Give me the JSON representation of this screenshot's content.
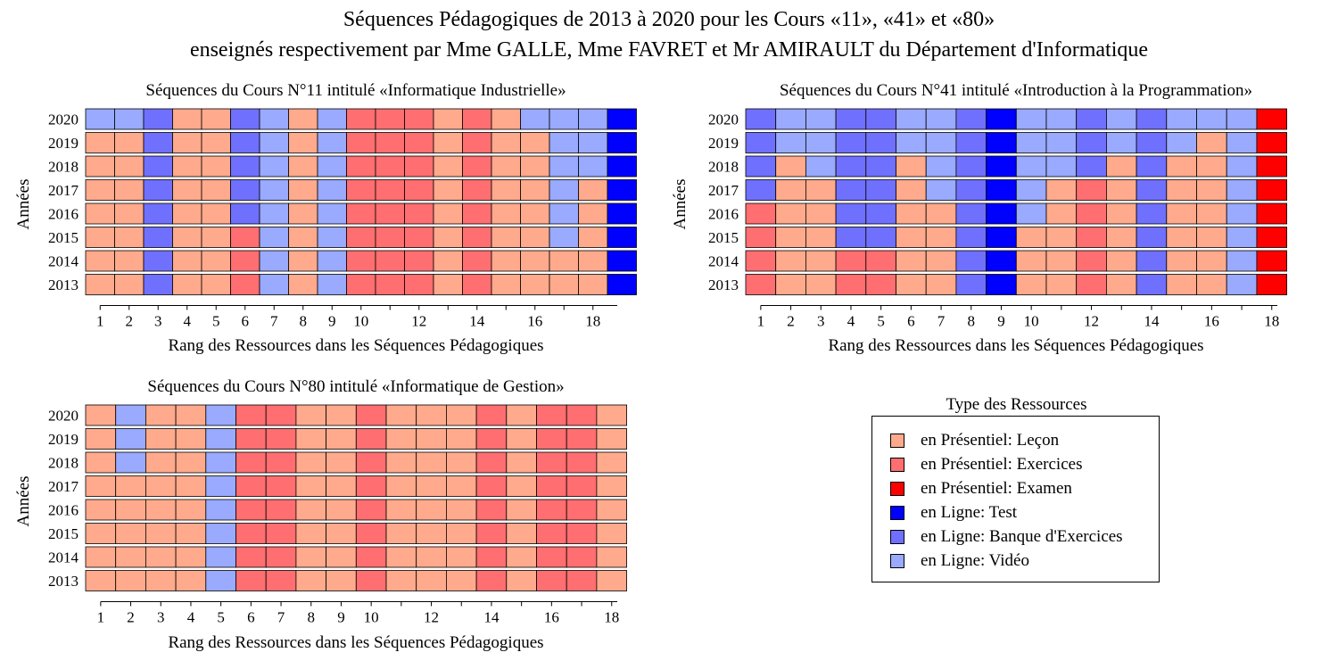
{
  "title": {
    "line1": "Séquences Pédagogiques de 2013 à 2020 pour les Cours «11», «41» et «80»",
    "line2": "enseignés respectivement par Mme GALLE, Mme FAVRET et Mr AMIRAULT du Département d'Informatique"
  },
  "legend": {
    "title": "Type des Ressources",
    "items": [
      {
        "code": "L",
        "label": "en Présentiel: Leçon",
        "color": "#FFAA8C"
      },
      {
        "code": "E",
        "label": "en Présentiel: Exercices",
        "color": "#FF6E70"
      },
      {
        "code": "X",
        "label": "en Présentiel: Examen",
        "color": "#FF0000"
      },
      {
        "code": "T",
        "label": "en Ligne: Test",
        "color": "#0000FF"
      },
      {
        "code": "B",
        "label": "en Ligne: Banque d'Exercices",
        "color": "#7070FF"
      },
      {
        "code": "V",
        "label": "en Ligne: Vidéo",
        "color": "#99AAFF"
      }
    ]
  },
  "chart_data": [
    {
      "type": "heatmap",
      "title": "Séquences du Cours N°11 intitulé «Informatique Industrielle»",
      "xlabel": "Rang des Ressources dans les Séquences Pédagogiques",
      "ylabel": "Années",
      "x_ticks": [
        "1",
        "2",
        "3",
        "4",
        "5",
        "6",
        "7",
        "8",
        "9",
        "10",
        "12",
        "14",
        "16",
        "18"
      ],
      "years": [
        "2020",
        "2019",
        "2018",
        "2017",
        "2016",
        "2015",
        "2014",
        "2013"
      ],
      "rows": [
        "VVBLLBVLVEEELELVVVT",
        "LLBLLBVLVEEELELLVVT",
        "LLBLLBVLVEEELELLVVT",
        "LLBLLBVLVEEELELLVLT",
        "LLBLLBVLVEEELELLVLT",
        "LLBLLEVLVEEELELLVLT",
        "LLBLLEVLVEEELELLLLT",
        "LLBLLEVLVEEELELLLLT"
      ]
    },
    {
      "type": "heatmap",
      "title": "Séquences du Cours N°41 intitulé «Introduction à la Programmation»",
      "xlabel": "Rang des Ressources dans les Séquences Pédagogiques",
      "ylabel": "Années",
      "x_ticks": [
        "1",
        "2",
        "3",
        "4",
        "5",
        "6",
        "7",
        "8",
        "9",
        "10",
        "12",
        "14",
        "16",
        "18"
      ],
      "years": [
        "2020",
        "2019",
        "2018",
        "2017",
        "2016",
        "2015",
        "2014",
        "2013"
      ],
      "rows": [
        "BVVBBVVBTVVBVBVVVX",
        "BVVBBVVBTVVBVBVLVX",
        "BLVBBLVBTVVBLBLLVX",
        "BLLBBLVBTVLELBLLVX",
        "ELLBBLLBTVLELBLLVX",
        "ELLBBLLBTLLELBLLVX",
        "ELLEELLBTLLELBLLVX",
        "ELLEELLBTLLELBLLVX"
      ]
    },
    {
      "type": "heatmap",
      "title": "Séquences du Cours N°80 intitulé «Informatique de Gestion»",
      "xlabel": "Rang des Ressources dans les Séquences Pédagogiques",
      "ylabel": "Années",
      "x_ticks": [
        "1",
        "2",
        "3",
        "4",
        "5",
        "6",
        "7",
        "8",
        "9",
        "10",
        "12",
        "14",
        "16",
        "18"
      ],
      "years": [
        "2020",
        "2019",
        "2018",
        "2017",
        "2016",
        "2015",
        "2014",
        "2013"
      ],
      "rows": [
        "LVLLVEELLELLLELEEL",
        "LVLLVEELLELLLELEEL",
        "LVLLVEELLELLLELEEL",
        "LLLLVEELLELLLELEEL",
        "LLLLVEELLELLLELEEL",
        "LLLLVEELLELLLELEEL",
        "LLLLVEELLELLLELEEL",
        "LLLLVEELLELLLELEEL"
      ]
    }
  ]
}
